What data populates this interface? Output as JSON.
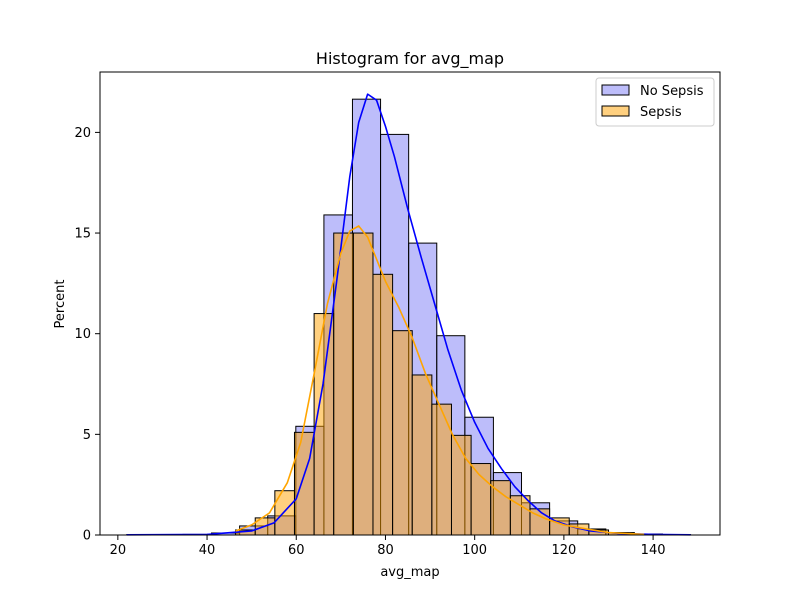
{
  "chart_data": {
    "type": "bar",
    "title": "Histogram for avg_map",
    "xlabel": "avg_map",
    "ylabel": "Percent",
    "xlim": [
      16,
      155
    ],
    "ylim": [
      0,
      23
    ],
    "x_ticks": [
      20,
      40,
      60,
      80,
      100,
      120,
      140
    ],
    "y_ticks": [
      0,
      5,
      10,
      15,
      20
    ],
    "grid": false,
    "legend_position": "top-right",
    "series": [
      {
        "name": "No Sepsis",
        "color": "#7b7bf6",
        "edge_color": "#000000",
        "kde_color": "#0000ff",
        "bins": [
          {
            "x0": 22,
            "x1": 28.3,
            "value": 0.02
          },
          {
            "x0": 28.3,
            "x1": 34.6,
            "value": 0.02
          },
          {
            "x0": 34.6,
            "x1": 41,
            "value": 0.03
          },
          {
            "x0": 41,
            "x1": 47.3,
            "value": 0.1
          },
          {
            "x0": 47.3,
            "x1": 53.6,
            "value": 0.45
          },
          {
            "x0": 53.6,
            "x1": 59.9,
            "value": 0.95
          },
          {
            "x0": 59.9,
            "x1": 66.2,
            "value": 5.4
          },
          {
            "x0": 66.2,
            "x1": 72.6,
            "value": 15.9
          },
          {
            "x0": 72.6,
            "x1": 78.9,
            "value": 21.65
          },
          {
            "x0": 78.9,
            "x1": 85.2,
            "value": 19.9
          },
          {
            "x0": 85.2,
            "x1": 91.5,
            "value": 14.5
          },
          {
            "x0": 91.5,
            "x1": 97.8,
            "value": 9.9
          },
          {
            "x0": 97.8,
            "x1": 104.2,
            "value": 5.85
          },
          {
            "x0": 104.2,
            "x1": 110.5,
            "value": 3.1
          },
          {
            "x0": 110.5,
            "x1": 116.8,
            "value": 1.6
          },
          {
            "x0": 116.8,
            "x1": 123.1,
            "value": 0.7
          },
          {
            "x0": 123.1,
            "x1": 129.4,
            "value": 0.3
          },
          {
            "x0": 129.4,
            "x1": 135.8,
            "value": 0.12
          },
          {
            "x0": 135.8,
            "x1": 142.1,
            "value": 0.05
          },
          {
            "x0": 142.1,
            "x1": 148.4,
            "value": 0.02
          }
        ],
        "kde": [
          [
            22,
            0.01
          ],
          [
            40,
            0.03
          ],
          [
            50,
            0.2
          ],
          [
            55,
            0.6
          ],
          [
            60,
            1.8
          ],
          [
            63,
            3.8
          ],
          [
            66,
            7.5
          ],
          [
            69,
            12.5
          ],
          [
            72,
            17.8
          ],
          [
            74,
            20.5
          ],
          [
            76,
            21.9
          ],
          [
            78,
            21.6
          ],
          [
            80,
            20.3
          ],
          [
            82,
            18.8
          ],
          [
            85,
            16.2
          ],
          [
            88,
            13.8
          ],
          [
            91,
            11.5
          ],
          [
            94,
            9.2
          ],
          [
            97,
            7.2
          ],
          [
            100,
            5.6
          ],
          [
            103,
            4.3
          ],
          [
            106,
            3.3
          ],
          [
            109,
            2.4
          ],
          [
            112,
            1.7
          ],
          [
            115,
            1.1
          ],
          [
            118,
            0.7
          ],
          [
            122,
            0.4
          ],
          [
            126,
            0.2
          ],
          [
            132,
            0.08
          ],
          [
            140,
            0.03
          ],
          [
            148.4,
            0.01
          ]
        ]
      },
      {
        "name": "Sepsis",
        "color": "#ffa100",
        "edge_color": "#000000",
        "kde_color": "#ffa500",
        "bins": [
          {
            "x0": 46.4,
            "x1": 50.8,
            "value": 0.25
          },
          {
            "x0": 50.8,
            "x1": 55.2,
            "value": 0.85
          },
          {
            "x0": 55.2,
            "x1": 59.6,
            "value": 2.2
          },
          {
            "x0": 59.6,
            "x1": 64.0,
            "value": 5.1
          },
          {
            "x0": 64.0,
            "x1": 68.4,
            "value": 11.0
          },
          {
            "x0": 68.4,
            "x1": 72.8,
            "value": 15.0
          },
          {
            "x0": 72.8,
            "x1": 77.2,
            "value": 15.0
          },
          {
            "x0": 77.2,
            "x1": 81.6,
            "value": 12.95
          },
          {
            "x0": 81.6,
            "x1": 86.0,
            "value": 10.15
          },
          {
            "x0": 86.0,
            "x1": 90.4,
            "value": 7.95
          },
          {
            "x0": 90.4,
            "x1": 94.8,
            "value": 6.5
          },
          {
            "x0": 94.8,
            "x1": 99.2,
            "value": 4.95
          },
          {
            "x0": 99.2,
            "x1": 103.6,
            "value": 3.55
          },
          {
            "x0": 103.6,
            "x1": 108.0,
            "value": 2.7
          },
          {
            "x0": 108.0,
            "x1": 112.4,
            "value": 1.95
          },
          {
            "x0": 112.4,
            "x1": 116.8,
            "value": 1.3
          },
          {
            "x0": 116.8,
            "x1": 121.2,
            "value": 0.85
          },
          {
            "x0": 121.2,
            "x1": 125.6,
            "value": 0.55
          },
          {
            "x0": 125.6,
            "x1": 130.0,
            "value": 0.25
          },
          {
            "x0": 130.0,
            "x1": 134.4,
            "value": 0.12
          },
          {
            "x0": 134.4,
            "x1": 138.0,
            "value": 0.05
          }
        ],
        "kde": [
          [
            46.4,
            0.2
          ],
          [
            50,
            0.5
          ],
          [
            54,
            1.1
          ],
          [
            58,
            2.6
          ],
          [
            61,
            4.6
          ],
          [
            64,
            8.0
          ],
          [
            67,
            11.5
          ],
          [
            70,
            14.0
          ],
          [
            72,
            15.1
          ],
          [
            74,
            15.35
          ],
          [
            76,
            14.8
          ],
          [
            78,
            13.7
          ],
          [
            80,
            12.6
          ],
          [
            83,
            11.3
          ],
          [
            86,
            9.8
          ],
          [
            89,
            8.0
          ],
          [
            92,
            6.5
          ],
          [
            95,
            5.0
          ],
          [
            98,
            3.8
          ],
          [
            101,
            3.0
          ],
          [
            104,
            2.4
          ],
          [
            107,
            1.9
          ],
          [
            110,
            1.5
          ],
          [
            113,
            1.1
          ],
          [
            116,
            0.8
          ],
          [
            120,
            0.5
          ],
          [
            125,
            0.3
          ],
          [
            130,
            0.12
          ],
          [
            138,
            0.03
          ]
        ]
      }
    ]
  }
}
